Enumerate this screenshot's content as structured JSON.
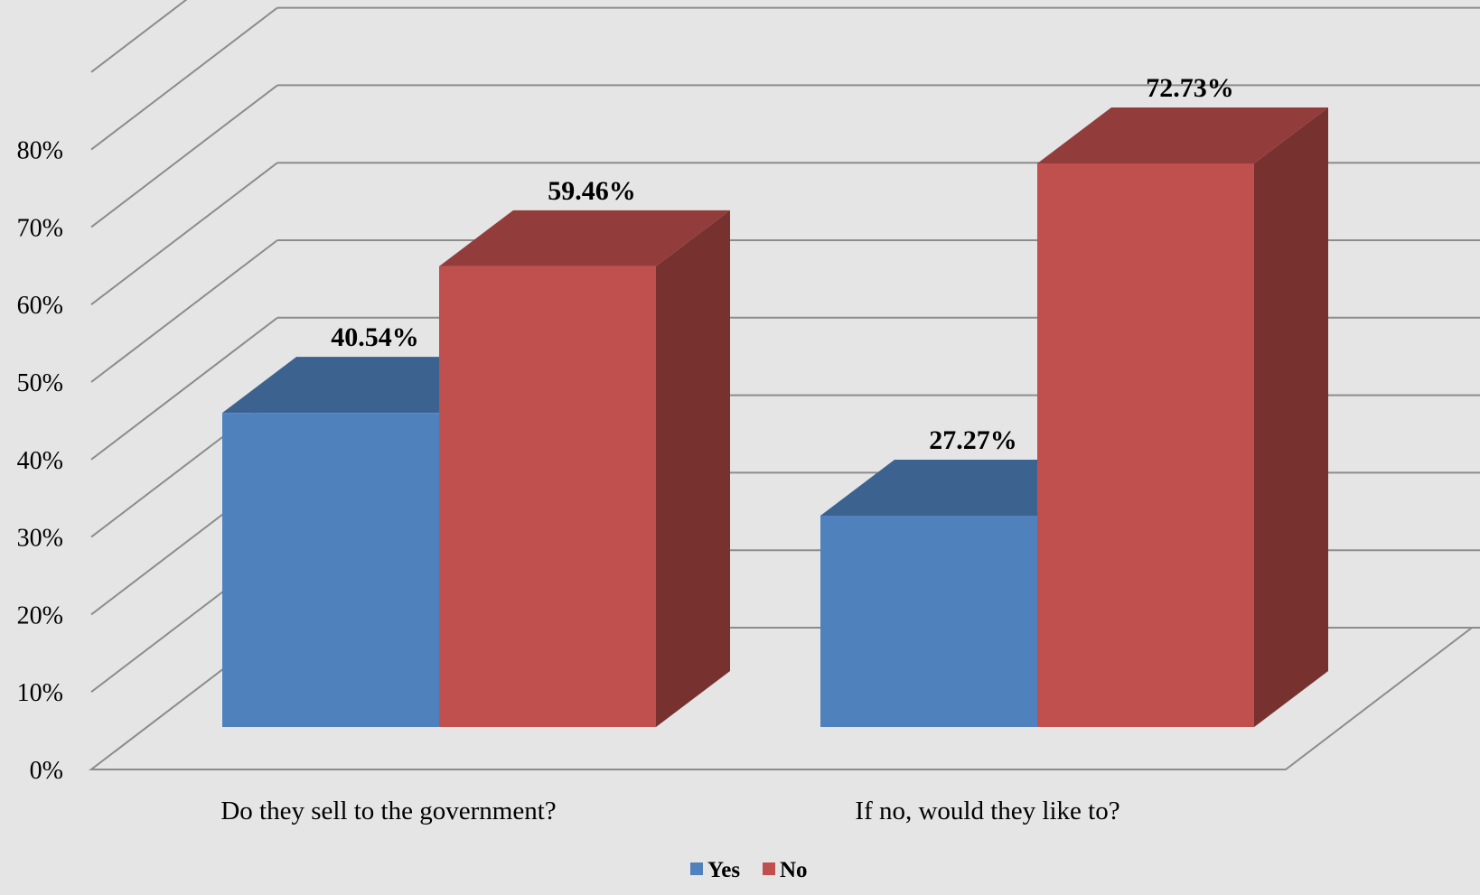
{
  "chart_data": {
    "type": "bar",
    "categories": [
      "Do they sell to the government?",
      "If no, would they like to?"
    ],
    "series": [
      {
        "name": "Yes",
        "values": [
          40.54,
          27.27
        ],
        "labels": [
          "40.54%",
          "27.27%"
        ],
        "color": "#4f81bd"
      },
      {
        "name": "No",
        "values": [
          59.46,
          72.73
        ],
        "labels": [
          "59.46%",
          "72.73%"
        ],
        "color": "#c0504d"
      }
    ],
    "y_ticks": [
      {
        "value": 0,
        "label": "0%"
      },
      {
        "value": 10,
        "label": "10%"
      },
      {
        "value": 20,
        "label": "20%"
      },
      {
        "value": 30,
        "label": "30%"
      },
      {
        "value": 40,
        "label": "40%"
      },
      {
        "value": 50,
        "label": "50%"
      },
      {
        "value": 60,
        "label": "60%"
      },
      {
        "value": 70,
        "label": "70%"
      },
      {
        "value": 80,
        "label": "80%"
      }
    ],
    "ylim": [
      0,
      90
    ],
    "grid": true,
    "legend_position": "bottom",
    "style": "3d-clustered-column"
  }
}
